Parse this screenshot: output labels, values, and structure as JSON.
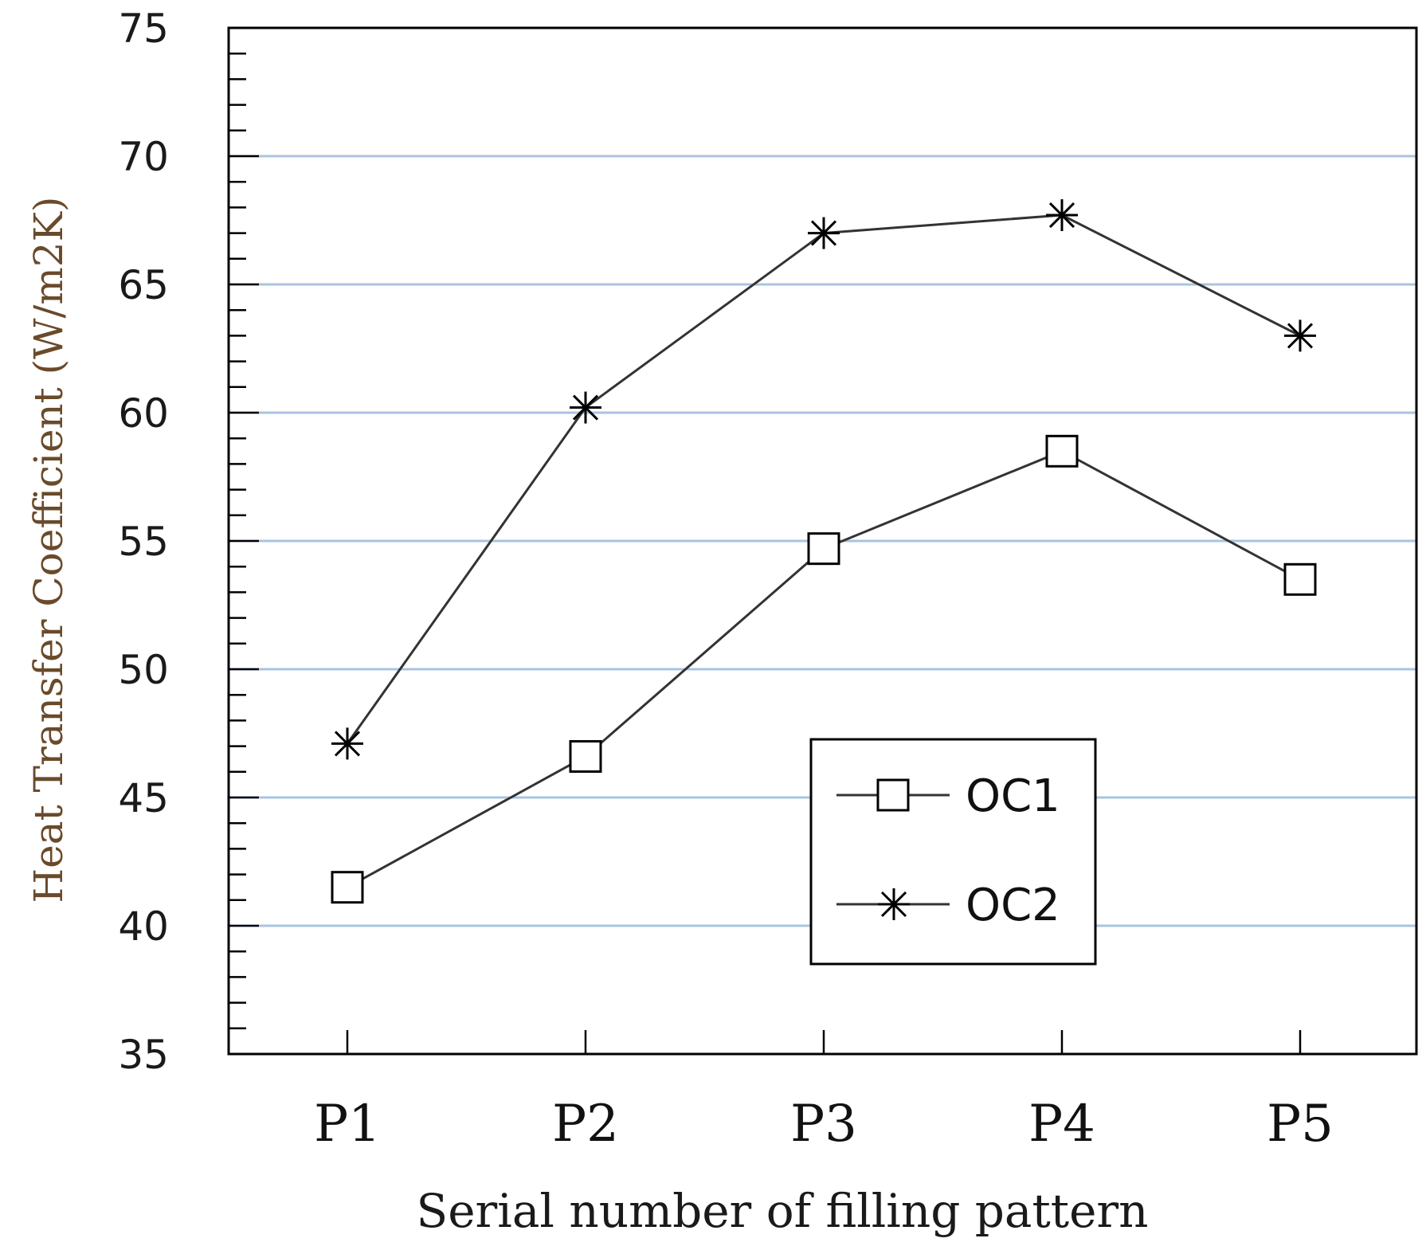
{
  "chart_data": {
    "type": "line",
    "title": "",
    "xlabel": "Serial number of filling pattern",
    "ylabel": "Heat Transfer Coefficient (W/m2K)",
    "categories": [
      "P1",
      "P2",
      "P3",
      "P4",
      "P5"
    ],
    "ylim": [
      35,
      75
    ],
    "yticks": [
      35,
      40,
      45,
      50,
      55,
      60,
      65,
      70,
      75
    ],
    "grid": true,
    "legend_position": "inside-lower-right",
    "series": [
      {
        "name": "OC1",
        "marker": "square",
        "values": [
          41.5,
          46.6,
          54.7,
          58.5,
          53.5
        ]
      },
      {
        "name": "OC2",
        "marker": "asterisk",
        "values": [
          47.1,
          60.2,
          67.0,
          67.7,
          63.0
        ]
      }
    ],
    "colors": {
      "line": "#333333",
      "grid": "#a9c4e0",
      "ylabel": "#6a4a2a"
    }
  }
}
